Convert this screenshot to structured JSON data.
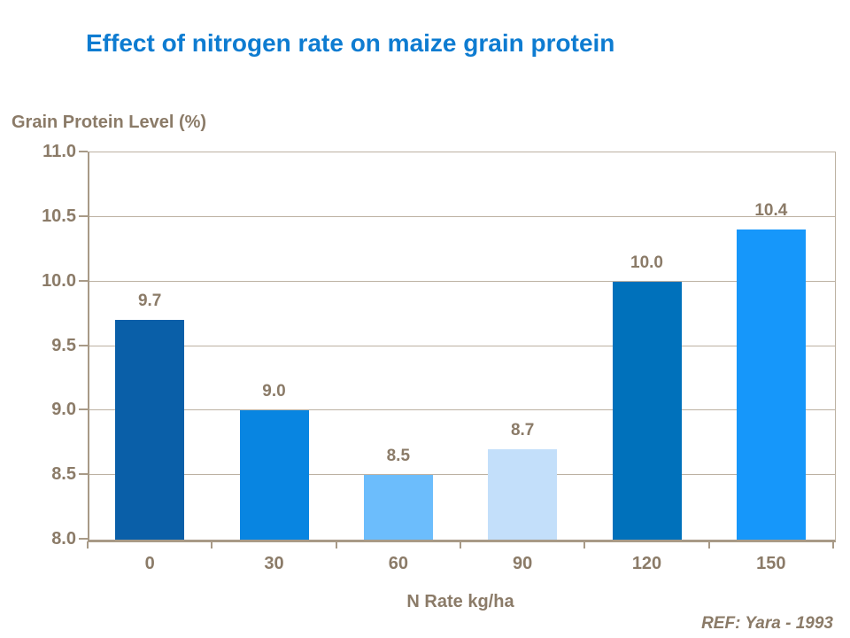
{
  "colors": {
    "title": "#0e7cd1",
    "text": "#8b7b68",
    "grid": "#bcb1a2",
    "axis": "#a89a87",
    "background": "#ffffff"
  },
  "footer": {
    "ref_label": "REF: Yara - 1993"
  },
  "chart_data": {
    "type": "bar",
    "title": "Effect of nitrogen rate on maize grain protein",
    "xlabel": "N Rate kg/ha",
    "ylabel": "Grain Protein Level (%)",
    "categories": [
      "0",
      "30",
      "60",
      "90",
      "120",
      "150"
    ],
    "values": [
      9.7,
      9.0,
      8.5,
      8.7,
      10.0,
      10.4
    ],
    "value_labels": [
      "9.7",
      "9.0",
      "8.5",
      "8.7",
      "10.0",
      "10.4"
    ],
    "bar_colors": [
      "#0a5fa8",
      "#0885e1",
      "#6cbdfc",
      "#c3dffa",
      "#0071bb",
      "#1697fa"
    ],
    "ylim": [
      8.0,
      11.0
    ],
    "ytick_step": 0.5,
    "ytick_labels": [
      "11.0",
      "10.5",
      "10.0",
      "9.5",
      "9.0",
      "8.5",
      "8.0"
    ],
    "grid": true,
    "legend": false,
    "annotation": "REF: Yara - 1993"
  }
}
